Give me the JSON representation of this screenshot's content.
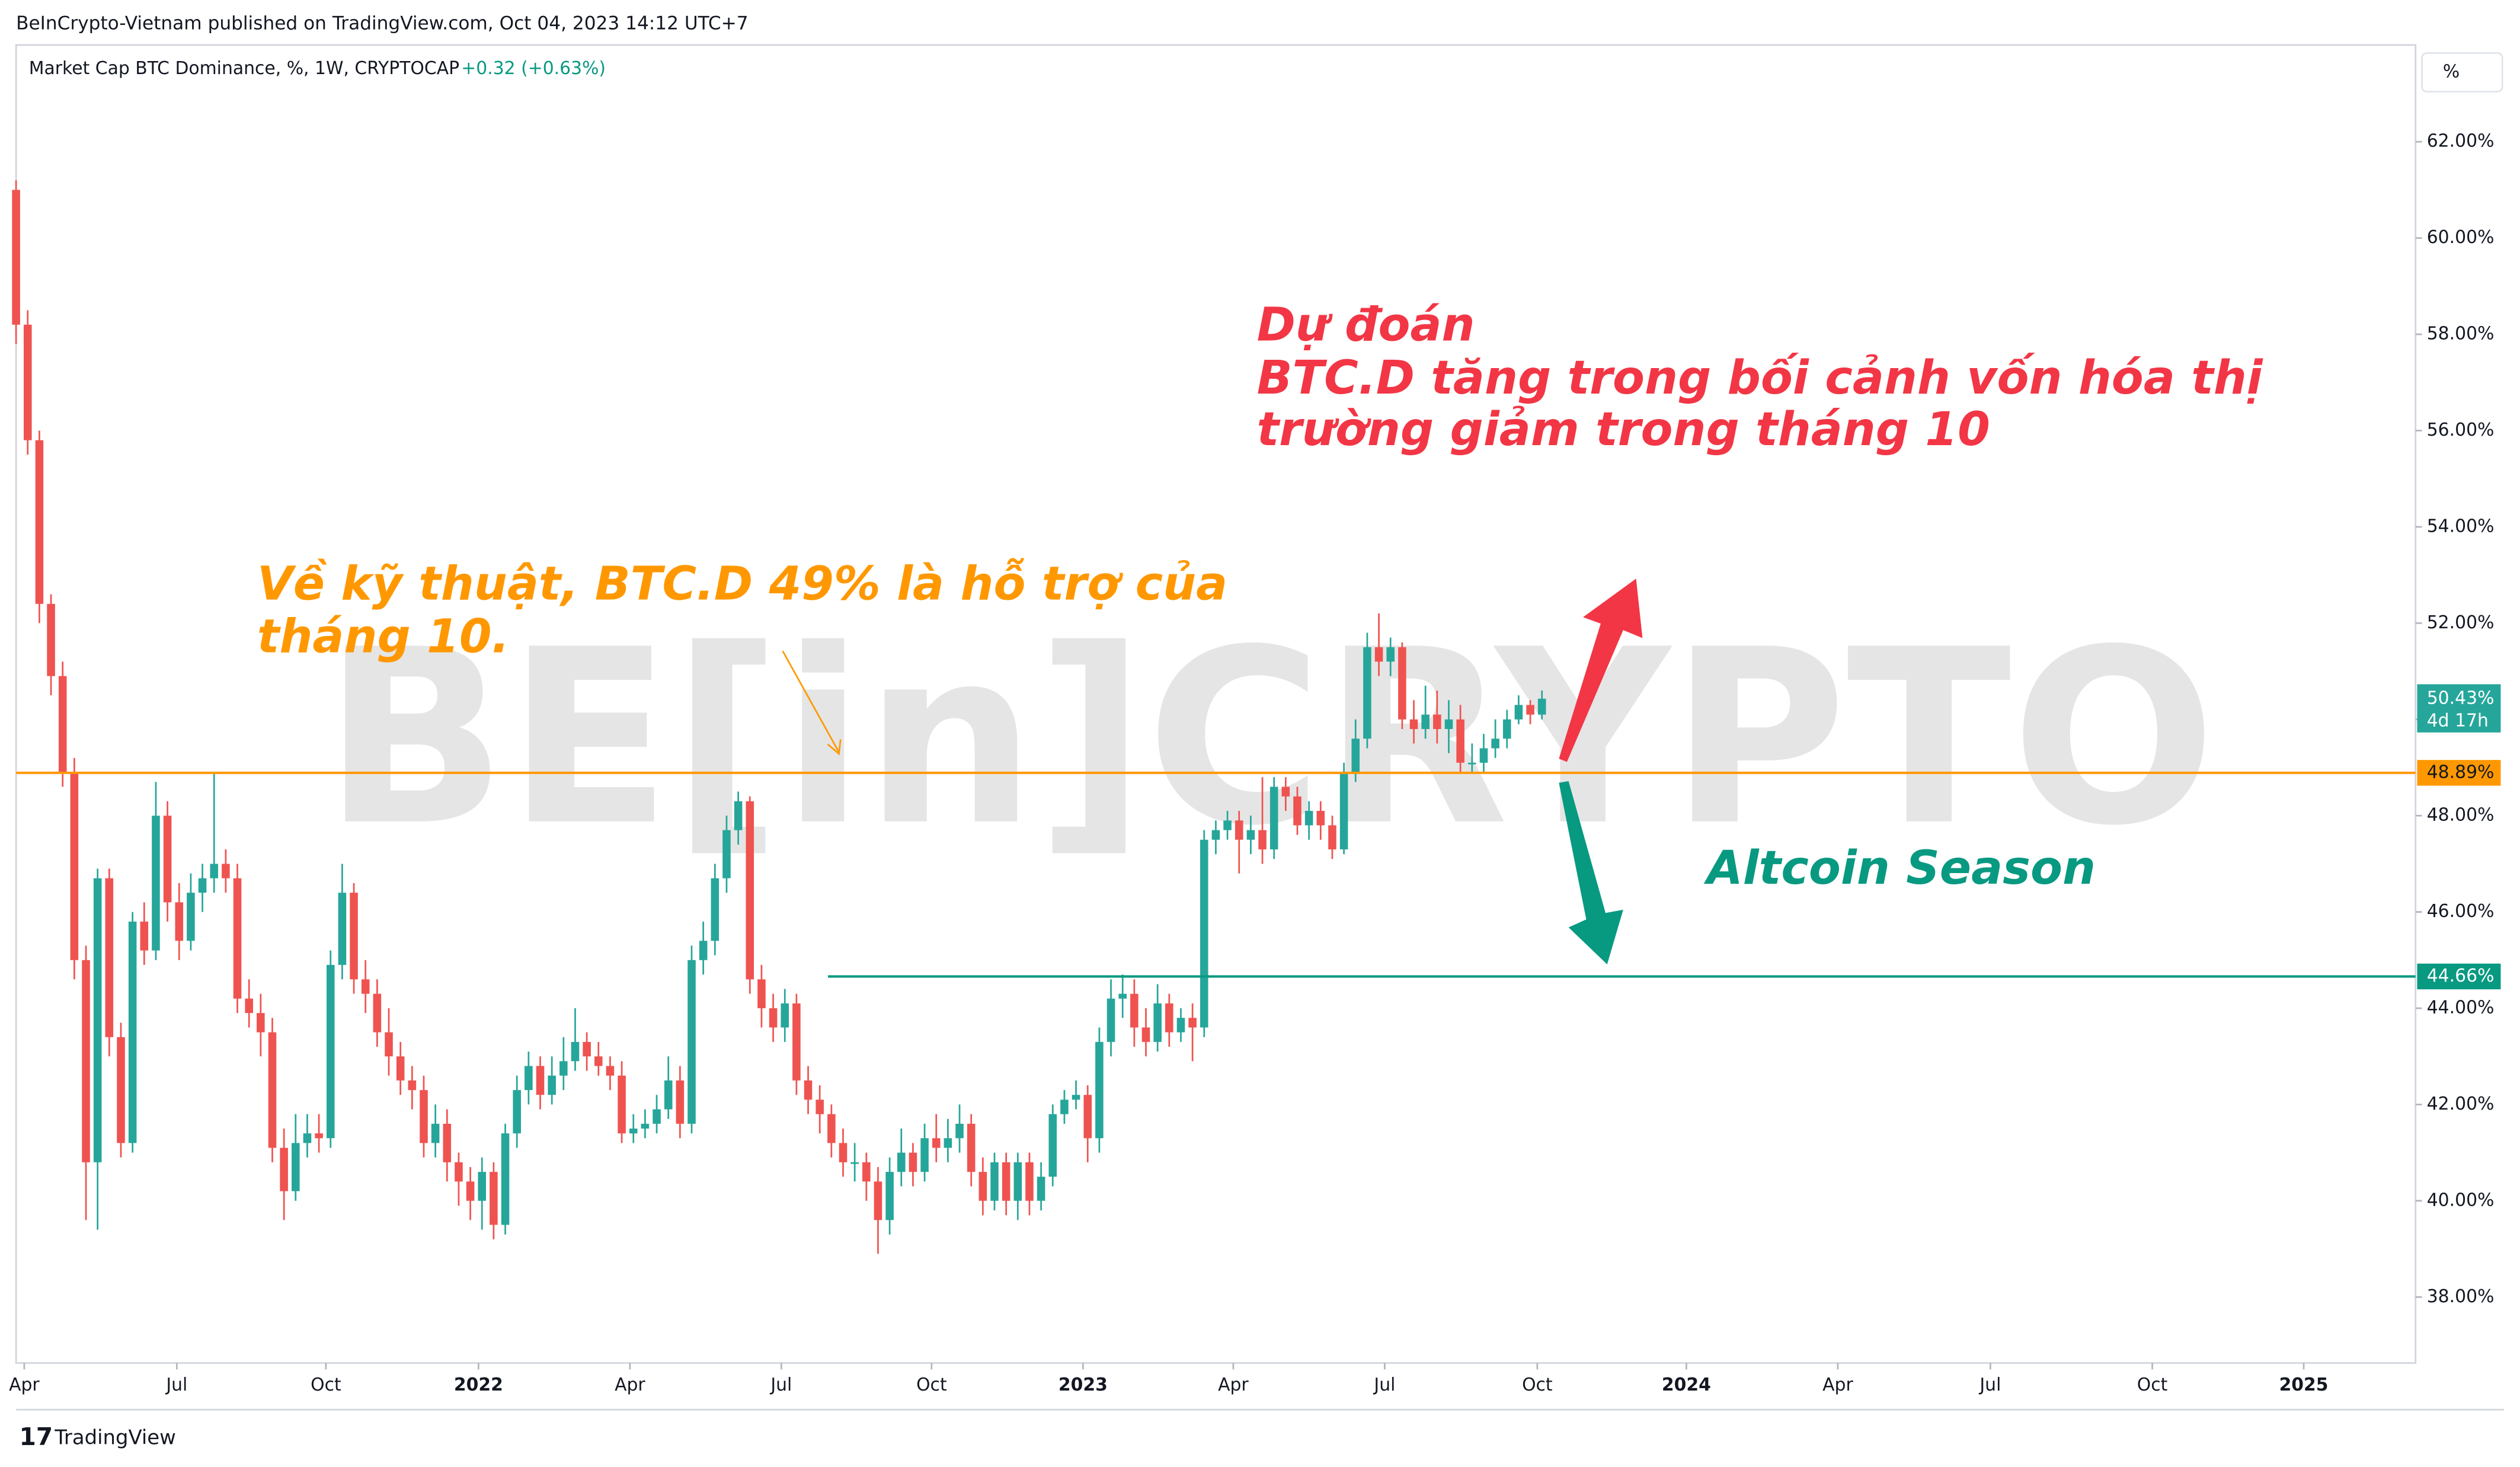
{
  "header": {
    "publisher": "BeInCrypto-Vietnam published on TradingView.com, Oct 04, 2023 14:12 UTC+7",
    "symbol": "Market Cap BTC Dominance, %, 1W, CRYPTOCAP",
    "change": "+0.32 (+0.63%)",
    "scale_button": "%",
    "footer": "TradingView",
    "watermark": "BE[in]CRYPTO"
  },
  "chart_data": {
    "type": "candlestick",
    "series": {
      "up_color": "#26a69a",
      "down_color": "#ef5350",
      "open": [
        61.0,
        58.2,
        55.8,
        52.4,
        50.9,
        48.9,
        45.0,
        40.8,
        46.7,
        43.4,
        41.2,
        45.8,
        45.2,
        48.0,
        46.2,
        45.4,
        46.4,
        46.7,
        47.0,
        46.7,
        44.2,
        43.9,
        43.5,
        41.1,
        40.2,
        41.2,
        41.4,
        41.3,
        44.9,
        46.4,
        44.6,
        44.3,
        43.5,
        43.0,
        42.5,
        42.3,
        41.2,
        41.6,
        40.8,
        40.4,
        40.0,
        40.6,
        39.5,
        41.4,
        42.3,
        42.8,
        42.2,
        42.6,
        42.9,
        43.3,
        43.0,
        42.8,
        42.6,
        41.4,
        41.5,
        41.6,
        41.9,
        42.5,
        41.6,
        45.0,
        45.4,
        46.7,
        47.7,
        48.3,
        44.6,
        44.0,
        43.6,
        44.1,
        42.5,
        42.1,
        41.8,
        41.2,
        40.8,
        40.8,
        40.4,
        39.6,
        40.6,
        41.0,
        40.6,
        41.3,
        41.1,
        41.3,
        41.6,
        40.6,
        40.0,
        40.8,
        40.0,
        40.8,
        40.0,
        40.5,
        41.8,
        42.1,
        42.2,
        41.3,
        43.3,
        44.2,
        44.3,
        43.6,
        43.3,
        44.1,
        43.5,
        43.8,
        43.6,
        47.5,
        47.7,
        47.9,
        47.5,
        47.7,
        47.3,
        48.6,
        48.4,
        47.8,
        48.1,
        47.8,
        47.3,
        48.9,
        49.6,
        51.5,
        51.2,
        51.5,
        50.0,
        49.8,
        50.1,
        49.8,
        50.0,
        49.1,
        49.1,
        49.4,
        49.6,
        50.0,
        50.3,
        50.1
      ],
      "high": [
        61.2,
        58.5,
        56.0,
        52.6,
        51.2,
        49.2,
        45.3,
        46.9,
        46.9,
        43.7,
        46.0,
        46.2,
        48.7,
        48.3,
        46.6,
        46.8,
        47.0,
        48.9,
        47.3,
        47.0,
        44.6,
        44.3,
        43.8,
        41.5,
        41.8,
        41.8,
        41.8,
        45.2,
        47.0,
        46.6,
        45.0,
        44.6,
        44.0,
        43.3,
        42.8,
        42.6,
        42.0,
        41.9,
        41.0,
        40.7,
        40.9,
        40.8,
        41.6,
        42.6,
        43.1,
        43.0,
        43.0,
        43.4,
        44.0,
        43.5,
        43.3,
        43.0,
        42.9,
        41.8,
        41.9,
        42.2,
        43.0,
        42.8,
        45.3,
        45.8,
        47.0,
        48.0,
        48.5,
        48.4,
        44.9,
        44.3,
        44.4,
        44.3,
        42.8,
        42.4,
        42.0,
        41.5,
        41.2,
        41.0,
        40.7,
        40.9,
        41.5,
        41.2,
        41.6,
        41.8,
        41.7,
        42.0,
        41.8,
        40.9,
        41.0,
        41.0,
        41.0,
        41.0,
        40.8,
        42.0,
        42.3,
        42.5,
        42.4,
        43.6,
        44.6,
        44.7,
        44.6,
        44.0,
        44.5,
        44.3,
        44.0,
        44.1,
        47.7,
        47.9,
        48.1,
        48.1,
        48.0,
        48.8,
        48.8,
        48.8,
        48.6,
        48.3,
        48.3,
        48.0,
        49.1,
        50.0,
        51.8,
        52.2,
        51.7,
        51.6,
        50.4,
        50.7,
        50.6,
        50.4,
        50.3,
        49.5,
        49.7,
        50.0,
        50.2,
        50.5,
        50.4,
        50.6
      ],
      "low": [
        57.8,
        55.5,
        52.0,
        50.5,
        48.6,
        44.6,
        39.6,
        39.4,
        43.0,
        40.9,
        41.0,
        44.9,
        45.0,
        45.8,
        45.0,
        45.2,
        46.0,
        46.4,
        46.4,
        43.9,
        43.6,
        43.0,
        40.8,
        39.6,
        40.0,
        40.9,
        41.0,
        41.1,
        44.6,
        44.3,
        43.9,
        43.2,
        42.6,
        42.2,
        41.9,
        40.9,
        40.9,
        40.4,
        39.9,
        39.6,
        39.4,
        39.2,
        39.3,
        41.1,
        42.0,
        41.9,
        42.0,
        42.3,
        42.7,
        42.7,
        42.6,
        42.3,
        41.2,
        41.2,
        41.3,
        41.4,
        41.7,
        41.3,
        41.4,
        44.7,
        45.1,
        46.4,
        47.4,
        44.3,
        43.6,
        43.3,
        43.3,
        42.2,
        41.8,
        41.4,
        40.9,
        40.5,
        40.4,
        40.0,
        38.9,
        39.3,
        40.3,
        40.3,
        40.4,
        40.8,
        40.8,
        41.0,
        40.3,
        39.7,
        39.8,
        39.7,
        39.6,
        39.7,
        39.8,
        40.3,
        41.6,
        41.9,
        40.8,
        41.0,
        43.0,
        43.8,
        43.2,
        43.0,
        43.1,
        43.2,
        43.3,
        42.9,
        43.4,
        47.2,
        47.5,
        46.8,
        47.2,
        47.0,
        47.1,
        48.1,
        47.6,
        47.5,
        47.5,
        47.1,
        47.2,
        48.7,
        49.4,
        50.9,
        50.9,
        49.8,
        49.5,
        49.6,
        49.5,
        49.3,
        48.9,
        48.9,
        48.9,
        49.2,
        49.4,
        49.9,
        49.9,
        50.0
      ],
      "close": [
        58.2,
        55.8,
        52.4,
        50.9,
        48.9,
        45.0,
        40.8,
        46.7,
        43.4,
        41.2,
        45.8,
        45.2,
        48.0,
        46.2,
        45.4,
        46.4,
        46.7,
        47.0,
        46.7,
        44.2,
        43.9,
        43.5,
        41.1,
        40.2,
        41.2,
        41.4,
        41.3,
        44.9,
        46.4,
        44.6,
        44.3,
        43.5,
        43.0,
        42.5,
        42.3,
        41.2,
        41.6,
        40.8,
        40.4,
        40.0,
        40.6,
        39.5,
        41.4,
        42.3,
        42.8,
        42.2,
        42.6,
        42.9,
        43.3,
        43.0,
        42.8,
        42.6,
        41.4,
        41.5,
        41.6,
        41.9,
        42.5,
        41.6,
        45.0,
        45.4,
        46.7,
        47.7,
        48.3,
        44.6,
        44.0,
        43.6,
        44.1,
        42.5,
        42.1,
        41.8,
        41.2,
        40.8,
        40.8,
        40.4,
        39.6,
        40.6,
        41.0,
        40.6,
        41.3,
        41.1,
        41.3,
        41.6,
        40.6,
        40.0,
        40.8,
        40.0,
        40.8,
        40.0,
        40.5,
        41.8,
        42.1,
        42.2,
        41.3,
        43.3,
        44.2,
        44.3,
        43.6,
        43.3,
        44.1,
        43.5,
        43.8,
        43.6,
        47.5,
        47.7,
        47.9,
        47.5,
        47.7,
        47.3,
        48.6,
        48.4,
        47.8,
        48.1,
        47.8,
        47.3,
        48.9,
        49.6,
        51.5,
        51.2,
        51.5,
        50.0,
        49.8,
        50.1,
        49.8,
        50.0,
        49.1,
        49.1,
        49.4,
        49.6,
        50.0,
        50.3,
        50.1,
        50.43
      ]
    },
    "xlim": [
      0,
      206
    ],
    "xticks": [
      {
        "value": 0.7,
        "label": "Apr"
      },
      {
        "value": 13.8,
        "label": "Jul"
      },
      {
        "value": 26.6,
        "label": "Oct"
      },
      {
        "value": 39.7,
        "label": "2022"
      },
      {
        "value": 52.7,
        "label": "Apr"
      },
      {
        "value": 65.7,
        "label": "Jul"
      },
      {
        "value": 78.6,
        "label": "Oct"
      },
      {
        "value": 91.6,
        "label": "2023"
      },
      {
        "value": 104.5,
        "label": "Apr"
      },
      {
        "value": 117.5,
        "label": "Jul"
      },
      {
        "value": 130.6,
        "label": "Oct"
      },
      {
        "value": 143.4,
        "label": "2024"
      },
      {
        "value": 156.4,
        "label": "Apr"
      },
      {
        "value": 169.5,
        "label": "Jul"
      },
      {
        "value": 183.4,
        "label": "Oct"
      },
      {
        "value": 196.4,
        "label": "2025"
      }
    ],
    "ylim": [
      36.63,
      64.01
    ],
    "yticks": [
      {
        "value": 38,
        "label": "38.00%"
      },
      {
        "value": 40,
        "label": "40.00%"
      },
      {
        "value": 42,
        "label": "42.00%"
      },
      {
        "value": 44,
        "label": "44.00%"
      },
      {
        "value": 46,
        "label": "46.00%"
      },
      {
        "value": 48,
        "label": "48.00%"
      },
      {
        "value": 50,
        "label": "50.00%"
      },
      {
        "value": 52,
        "label": "52.00%"
      },
      {
        "value": 54,
        "label": "54.00%"
      },
      {
        "value": 56,
        "label": "56.00%"
      },
      {
        "value": 58,
        "label": "58.00%"
      },
      {
        "value": 60,
        "label": "60.00%"
      },
      {
        "value": 62,
        "label": "62.00%"
      }
    ],
    "last_price": {
      "value": 50.43,
      "label": "50.43%",
      "countdown": "4d 17h",
      "color": "#26a69a"
    },
    "hlines": [
      {
        "value": 48.89,
        "label": "48.89%",
        "color": "#ff9800",
        "from": 0
      },
      {
        "value": 44.66,
        "label": "44.66%",
        "color": "#089981",
        "from": 69.7
      }
    ],
    "annotations": {
      "support": [
        "Về kỹ thuật, BTC.D 49% là hỗ trợ của",
        "tháng 10."
      ],
      "forecast": [
        "Dự đoán",
        "BTC.D tăng trong bối cảnh vốn hóa thị",
        "trường giảm trong tháng 10"
      ],
      "altcoin": "Altcoin Season"
    }
  }
}
